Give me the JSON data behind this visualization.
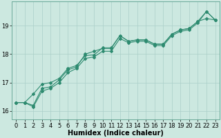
{
  "title": "",
  "xlabel": "Humidex (Indice chaleur)",
  "ylabel": "",
  "bg_color": "#cce8e0",
  "line_color": "#2e8b70",
  "grid_color": "#aacfc8",
  "xlim": [
    -0.5,
    23.5
  ],
  "ylim": [
    15.7,
    19.85
  ],
  "xticks": [
    0,
    1,
    2,
    3,
    4,
    5,
    6,
    7,
    8,
    9,
    10,
    11,
    12,
    13,
    14,
    15,
    16,
    17,
    18,
    19,
    20,
    21,
    22,
    23
  ],
  "yticks": [
    16,
    17,
    18,
    19
  ],
  "line1_x": [
    0,
    1,
    2,
    3,
    4,
    5,
    6,
    7,
    8,
    9,
    10,
    11,
    12,
    13,
    14,
    15,
    16,
    17,
    18,
    19,
    20,
    21,
    22,
    23
  ],
  "line1_y": [
    16.3,
    16.3,
    16.6,
    16.95,
    17.0,
    17.15,
    17.5,
    17.6,
    17.95,
    17.97,
    18.22,
    18.22,
    18.65,
    18.45,
    18.5,
    18.5,
    18.35,
    18.35,
    18.7,
    18.85,
    18.9,
    19.15,
    19.5,
    19.2
  ],
  "line2_x": [
    0,
    1,
    2,
    3,
    4,
    5,
    6,
    7,
    8,
    9,
    10,
    11,
    12,
    13,
    14,
    15,
    16,
    17,
    18,
    19,
    20,
    21,
    22,
    23
  ],
  "line2_y": [
    16.3,
    16.3,
    16.2,
    16.8,
    16.85,
    17.1,
    17.45,
    17.55,
    18.0,
    18.1,
    18.2,
    18.2,
    18.65,
    18.45,
    18.5,
    18.5,
    18.35,
    18.35,
    18.7,
    18.85,
    18.9,
    19.15,
    19.25,
    19.2
  ],
  "line3_x": [
    0,
    1,
    2,
    3,
    4,
    5,
    6,
    7,
    8,
    9,
    10,
    11,
    12,
    13,
    14,
    15,
    16,
    17,
    18,
    19,
    20,
    21,
    22,
    23
  ],
  "line3_y": [
    16.3,
    16.3,
    16.15,
    16.7,
    16.8,
    17.0,
    17.35,
    17.5,
    17.85,
    17.9,
    18.1,
    18.1,
    18.55,
    18.4,
    18.45,
    18.45,
    18.3,
    18.3,
    18.65,
    18.8,
    18.85,
    19.1,
    19.5,
    19.2
  ],
  "title_fontsize": 7,
  "xlabel_fontsize": 7,
  "tick_fontsize": 6
}
